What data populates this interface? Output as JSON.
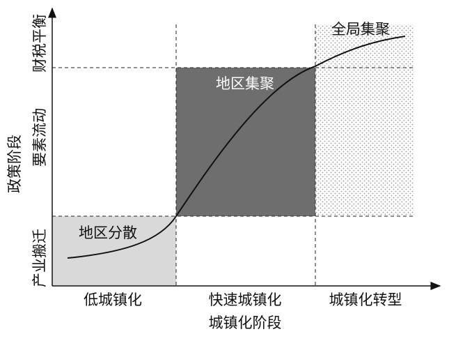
{
  "y_axis": {
    "label": "政策阶段",
    "levels": [
      "产业搬迁",
      "要素流动",
      "财税平衡"
    ]
  },
  "x_axis": {
    "label": "城镇化阶段",
    "stages": [
      "低城镇化",
      "快速城镇化",
      "城镇化转型"
    ]
  },
  "regions": [
    "地区分散",
    "地区集聚",
    "全局集聚"
  ]
}
